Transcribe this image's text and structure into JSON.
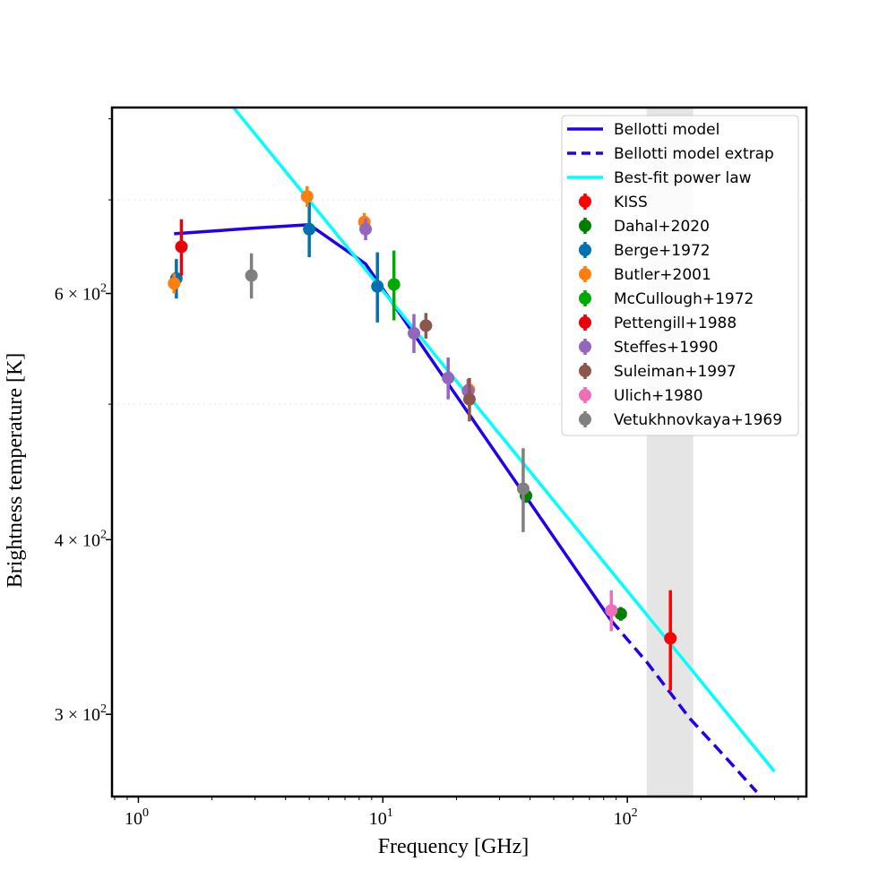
{
  "chart_data": {
    "type": "scatter",
    "xscale": "log",
    "yscale": "log",
    "xlabel": "Frequency [GHz]",
    "ylabel": "Brightness temperature [K]",
    "xlim": [
      0.78,
      540
    ],
    "ylim": [
      262,
      815
    ],
    "x_ticks": [
      {
        "value": 1,
        "base": "10",
        "exp": "0"
      },
      {
        "value": 10,
        "base": "10",
        "exp": "1"
      },
      {
        "value": 100,
        "base": "10",
        "exp": "2"
      }
    ],
    "y_ticks": [
      {
        "value": 300,
        "mant": "3",
        "base": "10",
        "exp": "2"
      },
      {
        "value": 400,
        "mant": "4",
        "base": "10",
        "exp": "2"
      },
      {
        "value": 600,
        "mant": "6",
        "base": "10",
        "exp": "2"
      }
    ],
    "shaded_band": {
      "x_range": [
        120,
        186
      ],
      "color": "#e5e5e5"
    },
    "lines": [
      {
        "name": "Bellotti model",
        "color": "#2200ee",
        "style": "solid",
        "x": [
          1.4,
          2.9,
          5.0,
          8.5,
          86
        ],
        "y": [
          662,
          668,
          672,
          630,
          350
        ]
      },
      {
        "name": "Bellotti model extrap",
        "color": "#2200ee",
        "style": "dashed",
        "x": [
          86,
          120,
          180,
          250,
          338
        ],
        "y": [
          350,
          327,
          298,
          280,
          264
        ]
      },
      {
        "name": "Best-fit power law",
        "color": "#00ffff",
        "style": "solid",
        "x": [
          2.45,
          400
        ],
        "y": [
          815,
          273
        ]
      }
    ],
    "series": [
      {
        "name": "KISS",
        "color": "#ff0000",
        "points": [
          {
            "x": 150,
            "y": 340,
            "err": 28
          }
        ]
      },
      {
        "name": "Dahal+2020",
        "color": "#008000",
        "points": [
          {
            "x": 38.5,
            "y": 430,
            "err": 5
          },
          {
            "x": 94,
            "y": 354,
            "err": 4
          }
        ]
      },
      {
        "name": "Berge+1972",
        "color": "#0072b2",
        "points": [
          {
            "x": 1.43,
            "y": 615,
            "err": 20
          },
          {
            "x": 5.0,
            "y": 667,
            "err": 30
          },
          {
            "x": 9.5,
            "y": 607,
            "err": 35
          }
        ]
      },
      {
        "name": "Butler+2001",
        "color": "#ff7f0e",
        "points": [
          {
            "x": 1.4,
            "y": 610,
            "err": 10
          },
          {
            "x": 4.9,
            "y": 704,
            "err": 12
          },
          {
            "x": 8.4,
            "y": 675,
            "err": 10
          },
          {
            "x": 22.5,
            "y": 512,
            "err": 10
          }
        ]
      },
      {
        "name": "McCullough+1972",
        "color": "#00aa00",
        "points": [
          {
            "x": 11.1,
            "y": 609,
            "err": 35
          }
        ]
      },
      {
        "name": "Pettengill+1988",
        "color": "#e8000b",
        "points": [
          {
            "x": 1.5,
            "y": 648,
            "err": 30
          }
        ]
      },
      {
        "name": "Steffes+1990",
        "color": "#9467bd",
        "points": [
          {
            "x": 8.5,
            "y": 667,
            "err": 12
          },
          {
            "x": 13.4,
            "y": 562,
            "err": 18
          },
          {
            "x": 18.5,
            "y": 522,
            "err": 18
          },
          {
            "x": 22.3,
            "y": 511,
            "err": 10
          }
        ]
      },
      {
        "name": "Suleiman+1997",
        "color": "#8c564b",
        "points": [
          {
            "x": 15.0,
            "y": 569,
            "err": 12
          },
          {
            "x": 22.6,
            "y": 504,
            "err": 18
          }
        ]
      },
      {
        "name": "Ulich+1980",
        "color": "#ee6eb7",
        "points": [
          {
            "x": 86,
            "y": 356,
            "err": 12
          }
        ]
      },
      {
        "name": "Vetukhnovkaya+1969",
        "color": "#808080",
        "points": [
          {
            "x": 2.9,
            "y": 618,
            "err": 23
          },
          {
            "x": 37.5,
            "y": 435,
            "err": 30
          }
        ]
      }
    ],
    "legend": {
      "location": "upper right",
      "entries": [
        {
          "label": "Bellotti model",
          "kind": "line",
          "color": "#2200ee",
          "style": "solid"
        },
        {
          "label": "Bellotti model extrap",
          "kind": "line",
          "color": "#2200ee",
          "style": "dashed"
        },
        {
          "label": "Best-fit power law",
          "kind": "line",
          "color": "#00ffff",
          "style": "solid"
        },
        {
          "label": "KISS",
          "kind": "marker",
          "color": "#ff0000"
        },
        {
          "label": "Dahal+2020",
          "kind": "marker",
          "color": "#008000"
        },
        {
          "label": "Berge+1972",
          "kind": "marker",
          "color": "#0072b2"
        },
        {
          "label": "Butler+2001",
          "kind": "marker",
          "color": "#ff7f0e"
        },
        {
          "label": "McCullough+1972",
          "kind": "marker",
          "color": "#00aa00"
        },
        {
          "label": "Pettengill+1988",
          "kind": "marker",
          "color": "#e8000b"
        },
        {
          "label": "Steffes+1990",
          "kind": "marker",
          "color": "#9467bd"
        },
        {
          "label": "Suleiman+1997",
          "kind": "marker",
          "color": "#8c564b"
        },
        {
          "label": "Ulich+1980",
          "kind": "marker",
          "color": "#ee6eb7"
        },
        {
          "label": "Vetukhnovkaya+1969",
          "kind": "marker",
          "color": "#808080"
        }
      ]
    }
  }
}
